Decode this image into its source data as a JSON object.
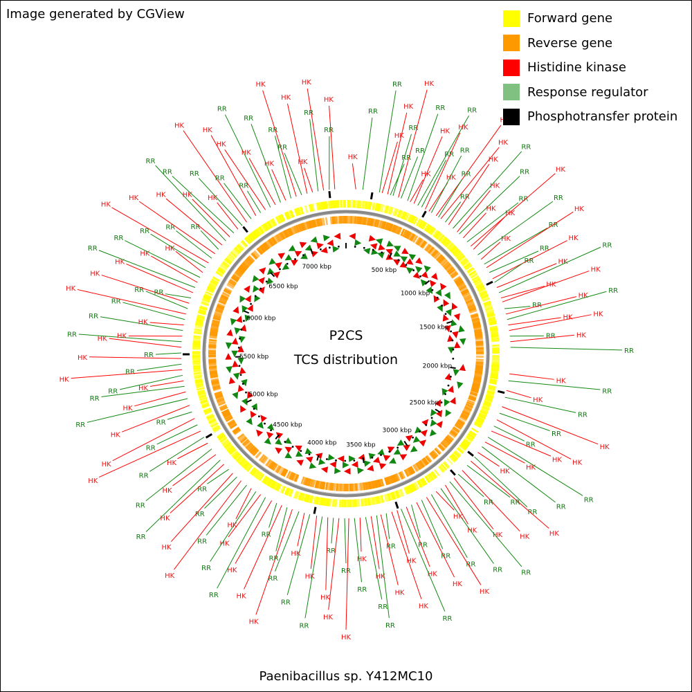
{
  "credit": "Image generated by CGView",
  "species": "Paenibacillus sp. Y412MC10",
  "center": {
    "line1": "P2CS",
    "line2": "TCS distribution"
  },
  "legend": [
    {
      "label": "Forward gene",
      "color": "#ffff00"
    },
    {
      "label": "Reverse gene",
      "color": "#ff9900"
    },
    {
      "label": "Histidine kinase",
      "color": "#ff0000"
    },
    {
      "label": "Response regulator",
      "color": "#80c080"
    },
    {
      "label": "Phosphotransfer protein",
      "color": "#000000"
    }
  ],
  "colors": {
    "forward": "#ffff00",
    "reverse": "#ff9900",
    "hk_line": "#ff0000",
    "hk_text": "#ee1111",
    "rr_line": "#118811",
    "rr_text": "#117711",
    "rr_arrow": "#118811",
    "hk_arrow": "#ee0000",
    "backbone": "#888888"
  },
  "genome": {
    "length_kbp": 7380,
    "tick_labels": [
      "500 kbp",
      "1000 kbp",
      "1500 kbp",
      "2000 kbp",
      "2500 kbp",
      "3000 kbp",
      "3500 kbp",
      "4000 kbp",
      "4500 kbp",
      "5000 kbp",
      "5500 kbp",
      "6000 kbp",
      "6500 kbp",
      "7000 kbp"
    ],
    "tick_values_kbp": [
      500,
      1000,
      1500,
      2000,
      2500,
      3000,
      3500,
      4000,
      4500,
      5000,
      5500,
      6000,
      6500,
      7000
    ]
  },
  "tcs_positions_kbp": [
    {
      "kbp": 70,
      "type": "HK"
    },
    {
      "kbp": 120,
      "type": "RR"
    },
    {
      "kbp": 240,
      "type": "RR"
    },
    {
      "kbp": 260,
      "type": "HK"
    },
    {
      "kbp": 300,
      "type": "HK"
    },
    {
      "kbp": 320,
      "type": "RR"
    },
    {
      "kbp": 340,
      "type": "RR"
    },
    {
      "kbp": 380,
      "type": "HK"
    },
    {
      "kbp": 400,
      "type": "RR"
    },
    {
      "kbp": 450,
      "type": "RR"
    },
    {
      "kbp": 470,
      "type": "HK"
    },
    {
      "kbp": 500,
      "type": "HK"
    },
    {
      "kbp": 530,
      "type": "RR"
    },
    {
      "kbp": 560,
      "type": "RR"
    },
    {
      "kbp": 590,
      "type": "HK"
    },
    {
      "kbp": 620,
      "type": "HK"
    },
    {
      "kbp": 640,
      "type": "RR"
    },
    {
      "kbp": 680,
      "type": "HK"
    },
    {
      "kbp": 700,
      "type": "RR"
    },
    {
      "kbp": 720,
      "type": "HK"
    },
    {
      "kbp": 760,
      "type": "RR"
    },
    {
      "kbp": 790,
      "type": "HK"
    },
    {
      "kbp": 830,
      "type": "RR"
    },
    {
      "kbp": 870,
      "type": "HK"
    },
    {
      "kbp": 890,
      "type": "RR"
    },
    {
      "kbp": 930,
      "type": "HK"
    },
    {
      "kbp": 970,
      "type": "RR"
    },
    {
      "kbp": 1010,
      "type": "HK"
    },
    {
      "kbp": 1040,
      "type": "HK"
    },
    {
      "kbp": 1090,
      "type": "RR"
    },
    {
      "kbp": 1130,
      "type": "HK"
    },
    {
      "kbp": 1170,
      "type": "RR"
    },
    {
      "kbp": 1200,
      "type": "HK"
    },
    {
      "kbp": 1240,
      "type": "RR"
    },
    {
      "kbp": 1290,
      "type": "HK"
    },
    {
      "kbp": 1320,
      "type": "RR"
    },
    {
      "kbp": 1360,
      "type": "HK"
    },
    {
      "kbp": 1400,
      "type": "RR"
    },
    {
      "kbp": 1440,
      "type": "HK"
    },
    {
      "kbp": 1470,
      "type": "HK"
    },
    {
      "kbp": 1520,
      "type": "RR"
    },
    {
      "kbp": 1560,
      "type": "HK"
    },
    {
      "kbp": 1600,
      "type": "RR"
    },
    {
      "kbp": 1640,
      "type": "HK"
    },
    {
      "kbp": 1680,
      "type": "HK"
    },
    {
      "kbp": 1720,
      "type": "RR"
    },
    {
      "kbp": 1760,
      "type": "HK"
    },
    {
      "kbp": 1800,
      "type": "RR"
    },
    {
      "kbp": 1990,
      "type": "HK"
    },
    {
      "kbp": 2040,
      "type": "RR"
    },
    {
      "kbp": 2110,
      "type": "HK"
    },
    {
      "kbp": 2160,
      "type": "RR"
    },
    {
      "kbp": 2230,
      "type": "HK"
    },
    {
      "kbp": 2280,
      "type": "RR"
    },
    {
      "kbp": 2330,
      "type": "HK"
    },
    {
      "kbp": 2380,
      "type": "RR"
    },
    {
      "kbp": 2420,
      "type": "HK"
    },
    {
      "kbp": 2470,
      "type": "RR"
    },
    {
      "kbp": 2510,
      "type": "HK"
    },
    {
      "kbp": 2550,
      "type": "RR"
    },
    {
      "kbp": 2600,
      "type": "HK"
    },
    {
      "kbp": 2640,
      "type": "RR"
    },
    {
      "kbp": 2680,
      "type": "HK"
    },
    {
      "kbp": 2720,
      "type": "RR"
    },
    {
      "kbp": 2770,
      "type": "HK"
    },
    {
      "kbp": 2810,
      "type": "RR"
    },
    {
      "kbp": 2850,
      "type": "HK"
    },
    {
      "kbp": 2890,
      "type": "RR"
    },
    {
      "kbp": 2930,
      "type": "HK"
    },
    {
      "kbp": 2970,
      "type": "RR"
    },
    {
      "kbp": 3010,
      "type": "HK"
    },
    {
      "kbp": 3050,
      "type": "RR"
    },
    {
      "kbp": 3090,
      "type": "HK"
    },
    {
      "kbp": 3130,
      "type": "RR"
    },
    {
      "kbp": 3170,
      "type": "HK"
    },
    {
      "kbp": 3210,
      "type": "RR"
    },
    {
      "kbp": 3250,
      "type": "HK"
    },
    {
      "kbp": 3290,
      "type": "RR"
    },
    {
      "kbp": 3320,
      "type": "HK"
    },
    {
      "kbp": 3360,
      "type": "HK"
    },
    {
      "kbp": 3400,
      "type": "RR"
    },
    {
      "kbp": 3440,
      "type": "HK"
    },
    {
      "kbp": 3470,
      "type": "RR"
    },
    {
      "kbp": 3510,
      "type": "HK"
    },
    {
      "kbp": 3550,
      "type": "RR"
    },
    {
      "kbp": 3590,
      "type": "HK"
    },
    {
      "kbp": 3630,
      "type": "RR"
    },
    {
      "kbp": 3670,
      "type": "HK"
    },
    {
      "kbp": 3700,
      "type": "RR"
    },
    {
      "kbp": 3740,
      "type": "HK"
    },
    {
      "kbp": 3780,
      "type": "RR"
    },
    {
      "kbp": 3820,
      "type": "HK"
    },
    {
      "kbp": 3860,
      "type": "RR"
    },
    {
      "kbp": 3900,
      "type": "HK"
    },
    {
      "kbp": 3950,
      "type": "RR"
    },
    {
      "kbp": 3990,
      "type": "HK"
    },
    {
      "kbp": 4030,
      "type": "RR"
    },
    {
      "kbp": 4080,
      "type": "HK"
    },
    {
      "kbp": 4120,
      "type": "RR"
    },
    {
      "kbp": 4160,
      "type": "HK"
    },
    {
      "kbp": 4200,
      "type": "RR"
    },
    {
      "kbp": 4240,
      "type": "HK"
    },
    {
      "kbp": 4290,
      "type": "RR"
    },
    {
      "kbp": 4330,
      "type": "HK"
    },
    {
      "kbp": 4370,
      "type": "RR"
    },
    {
      "kbp": 4410,
      "type": "HK"
    },
    {
      "kbp": 4450,
      "type": "RR"
    },
    {
      "kbp": 4500,
      "type": "HK"
    },
    {
      "kbp": 4540,
      "type": "RR"
    },
    {
      "kbp": 4580,
      "type": "HK"
    },
    {
      "kbp": 4620,
      "type": "RR"
    },
    {
      "kbp": 4670,
      "type": "HK"
    },
    {
      "kbp": 4710,
      "type": "RR"
    },
    {
      "kbp": 4760,
      "type": "HK"
    },
    {
      "kbp": 4810,
      "type": "RR"
    },
    {
      "kbp": 4860,
      "type": "HK"
    },
    {
      "kbp": 4910,
      "type": "RR"
    },
    {
      "kbp": 4960,
      "type": "HK"
    },
    {
      "kbp": 5010,
      "type": "RR"
    },
    {
      "kbp": 5060,
      "type": "HK"
    },
    {
      "kbp": 5110,
      "type": "RR"
    },
    {
      "kbp": 5160,
      "type": "HK"
    },
    {
      "kbp": 5210,
      "type": "RR"
    },
    {
      "kbp": 5260,
      "type": "HK"
    },
    {
      "kbp": 5300,
      "type": "RR"
    },
    {
      "kbp": 5340,
      "type": "HK"
    },
    {
      "kbp": 5380,
      "type": "RR"
    },
    {
      "kbp": 5420,
      "type": "HK"
    },
    {
      "kbp": 5460,
      "type": "RR"
    },
    {
      "kbp": 5500,
      "type": "HK"
    },
    {
      "kbp": 5540,
      "type": "RR"
    },
    {
      "kbp": 5580,
      "type": "HK"
    },
    {
      "kbp": 5620,
      "type": "RR"
    },
    {
      "kbp": 5660,
      "type": "HK"
    },
    {
      "kbp": 5700,
      "type": "RR"
    },
    {
      "kbp": 5740,
      "type": "HK"
    },
    {
      "kbp": 5780,
      "type": "RR"
    },
    {
      "kbp": 5820,
      "type": "HK"
    },
    {
      "kbp": 5860,
      "type": "RR"
    },
    {
      "kbp": 5900,
      "type": "HK"
    },
    {
      "kbp": 5940,
      "type": "RR"
    },
    {
      "kbp": 5980,
      "type": "HK"
    },
    {
      "kbp": 6020,
      "type": "RR"
    },
    {
      "kbp": 6060,
      "type": "HK"
    },
    {
      "kbp": 6100,
      "type": "RR"
    },
    {
      "kbp": 6140,
      "type": "HK"
    },
    {
      "kbp": 6180,
      "type": "RR"
    },
    {
      "kbp": 6220,
      "type": "HK"
    },
    {
      "kbp": 6260,
      "type": "RR"
    },
    {
      "kbp": 6300,
      "type": "HK"
    },
    {
      "kbp": 6340,
      "type": "RR"
    },
    {
      "kbp": 6380,
      "type": "HK"
    },
    {
      "kbp": 6420,
      "type": "RR"
    },
    {
      "kbp": 6460,
      "type": "HK"
    },
    {
      "kbp": 6500,
      "type": "RR"
    },
    {
      "kbp": 6540,
      "type": "HK"
    },
    {
      "kbp": 6580,
      "type": "RR"
    },
    {
      "kbp": 6620,
      "type": "HK"
    },
    {
      "kbp": 6660,
      "type": "RR"
    },
    {
      "kbp": 6700,
      "type": "HK"
    },
    {
      "kbp": 6740,
      "type": "RR"
    },
    {
      "kbp": 6780,
      "type": "HK"
    },
    {
      "kbp": 6820,
      "type": "RR"
    },
    {
      "kbp": 6860,
      "type": "HK"
    },
    {
      "kbp": 6900,
      "type": "RR"
    },
    {
      "kbp": 6940,
      "type": "HK"
    },
    {
      "kbp": 6980,
      "type": "RR"
    },
    {
      "kbp": 7020,
      "type": "HK"
    },
    {
      "kbp": 7060,
      "type": "RR"
    },
    {
      "kbp": 7100,
      "type": "HK"
    },
    {
      "kbp": 7140,
      "type": "HK"
    },
    {
      "kbp": 7180,
      "type": "RR"
    },
    {
      "kbp": 7220,
      "type": "HK"
    },
    {
      "kbp": 7260,
      "type": "RR"
    },
    {
      "kbp": 7300,
      "type": "HK"
    }
  ]
}
